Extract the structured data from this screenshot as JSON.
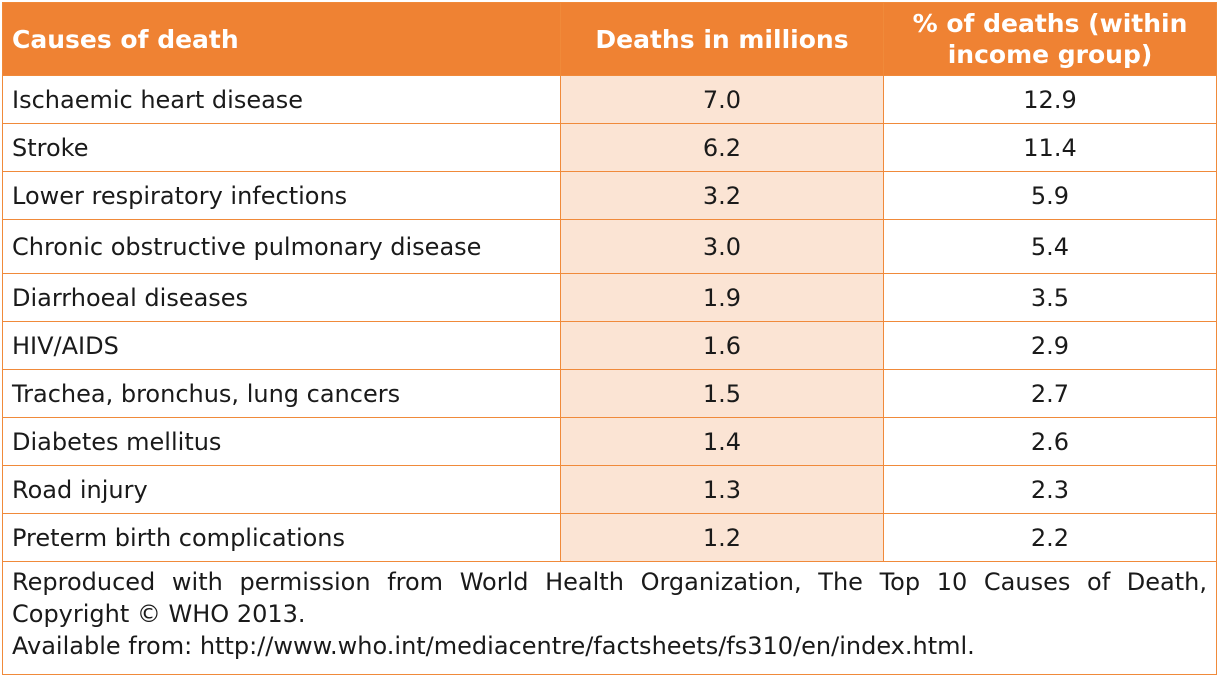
{
  "table": {
    "headers": [
      "Causes of death",
      "Deaths in millions",
      "% of deaths (within income group)"
    ],
    "rows": [
      {
        "cause": "Ischaemic heart disease",
        "deaths": "7.0",
        "percent": "12.9"
      },
      {
        "cause": "Stroke",
        "deaths": "6.2",
        "percent": "11.4"
      },
      {
        "cause": "Lower respiratory infections",
        "deaths": "3.2",
        "percent": "5.9"
      },
      {
        "cause": "Chronic obstructive pulmonary disease",
        "deaths": "3.0",
        "percent": "5.4"
      },
      {
        "cause": "Diarrhoeal diseases",
        "deaths": "1.9",
        "percent": "3.5"
      },
      {
        "cause": "HIV/AIDS",
        "deaths": "1.6",
        "percent": "2.9"
      },
      {
        "cause": "Trachea, bronchus, lung cancers",
        "deaths": "1.5",
        "percent": "2.7"
      },
      {
        "cause": "Diabetes mellitus",
        "deaths": "1.4",
        "percent": "2.6"
      },
      {
        "cause": "Road injury",
        "deaths": "1.3",
        "percent": "2.3"
      },
      {
        "cause": "Preterm birth complications",
        "deaths": "1.2",
        "percent": "2.2"
      }
    ],
    "note": {
      "line1": "Reproduced with permission from World Health Organization, The Top 10 Causes of Death, Copyright © WHO 2013.",
      "line2": "Available from: http://www.who.int/mediacentre/factsheets/fs310/en/index.html."
    }
  },
  "colors": {
    "header_bg": "#ef8233",
    "highlight_column": "#fbe4d4",
    "border": "#f08a3a"
  }
}
